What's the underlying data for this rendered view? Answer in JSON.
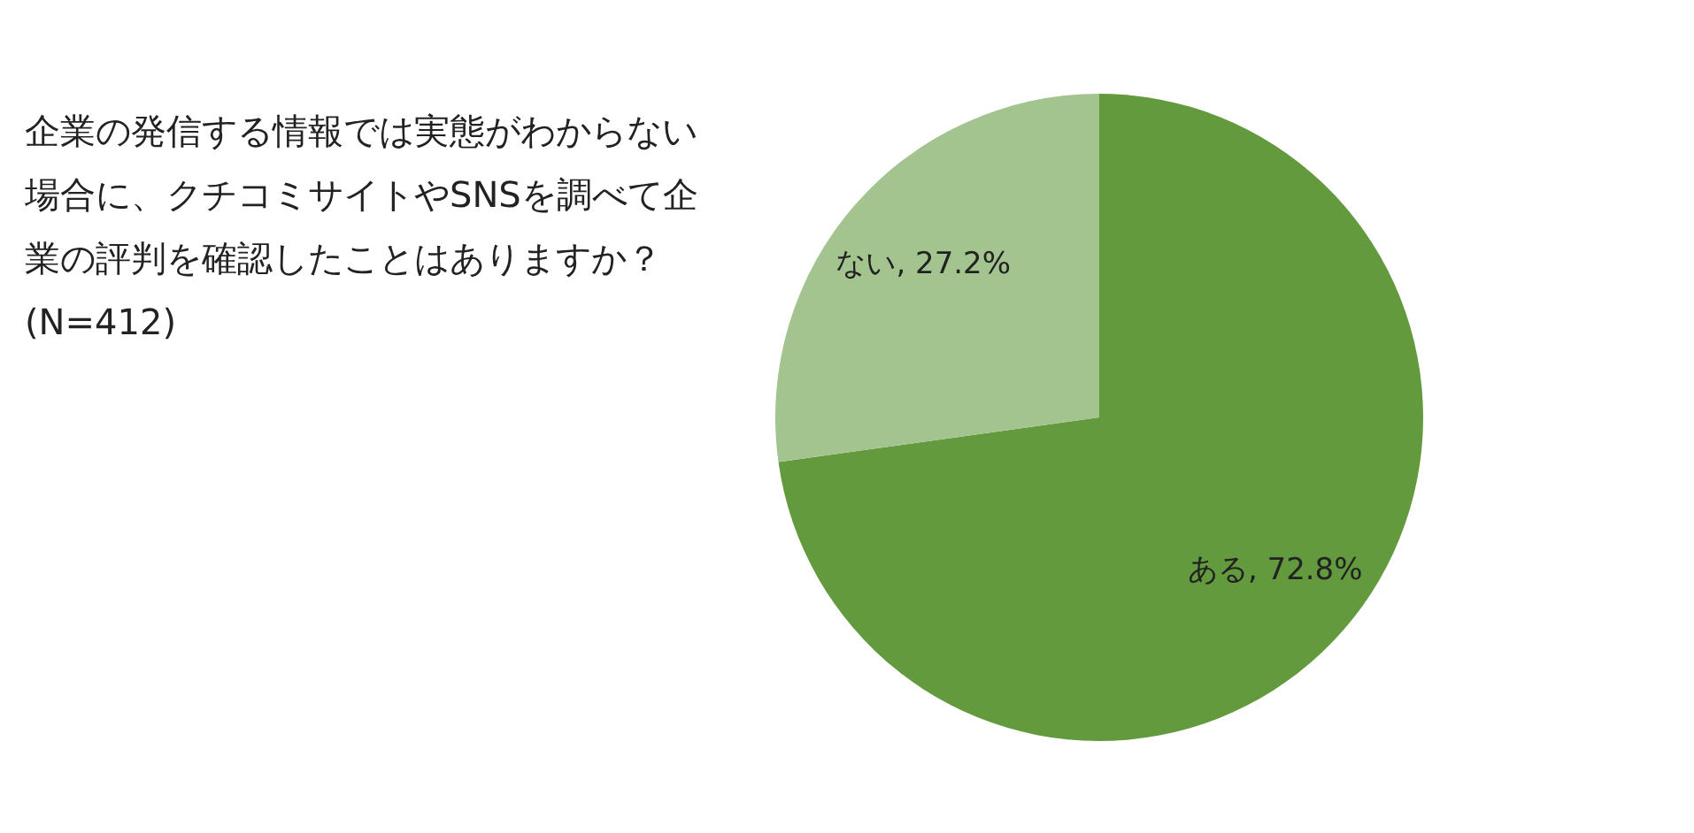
{
  "chart_data": {
    "type": "pie",
    "title": "企業の発信する情報では実態がわからない場合に、クチコミサイトやSNSを調べて企業の評判を確認したことはありますか？",
    "subtitle": "(N=412)",
    "categories": [
      "ある",
      "ない"
    ],
    "values": [
      72.8,
      27.2
    ],
    "colors": [
      "#639a3e",
      "#a3c48f"
    ],
    "value_labels": [
      ", 72.8%",
      ", 27.2%"
    ],
    "legend": false
  }
}
